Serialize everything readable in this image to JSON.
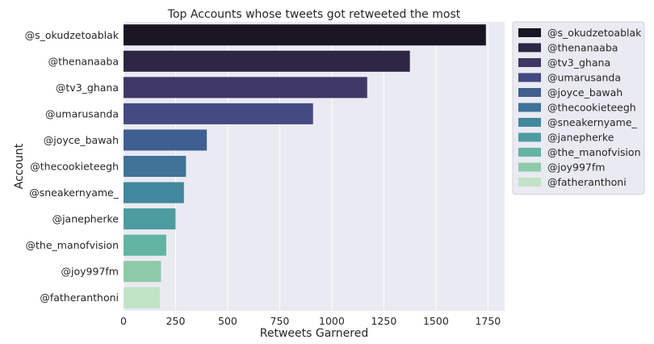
{
  "chart_data": {
    "type": "bar",
    "orientation": "horizontal",
    "title": "Top Accounts whose tweets got retweeted the most",
    "xlabel": "Retweets Garnered",
    "ylabel": "Account",
    "xlim": [
      0,
      1830
    ],
    "xticks": [
      0,
      250,
      500,
      750,
      1000,
      1250,
      1500,
      1750
    ],
    "grid": true,
    "legend_position": "outside-right-top",
    "categories": [
      "@s_okudzetoablak",
      "@thenanaaba",
      "@tv3_ghana",
      "@umarusanda",
      "@joyce_bawah",
      "@thecookieteegh",
      "@sneakernyame_",
      "@janepherke",
      "@the_manofvision",
      "@joy997fm",
      "@fatheranthoni"
    ],
    "values": [
      1740,
      1375,
      1170,
      910,
      400,
      300,
      290,
      250,
      205,
      180,
      175
    ],
    "colors": [
      "#1a1522",
      "#2f2544",
      "#3f3765",
      "#434b82",
      "#405f91",
      "#3f7397",
      "#41889c",
      "#4d9da0",
      "#63b4a3",
      "#8dcaaa",
      "#c1e3c5"
    ],
    "background_color": "#eaeaf2",
    "grid_color": "#ffffff"
  }
}
